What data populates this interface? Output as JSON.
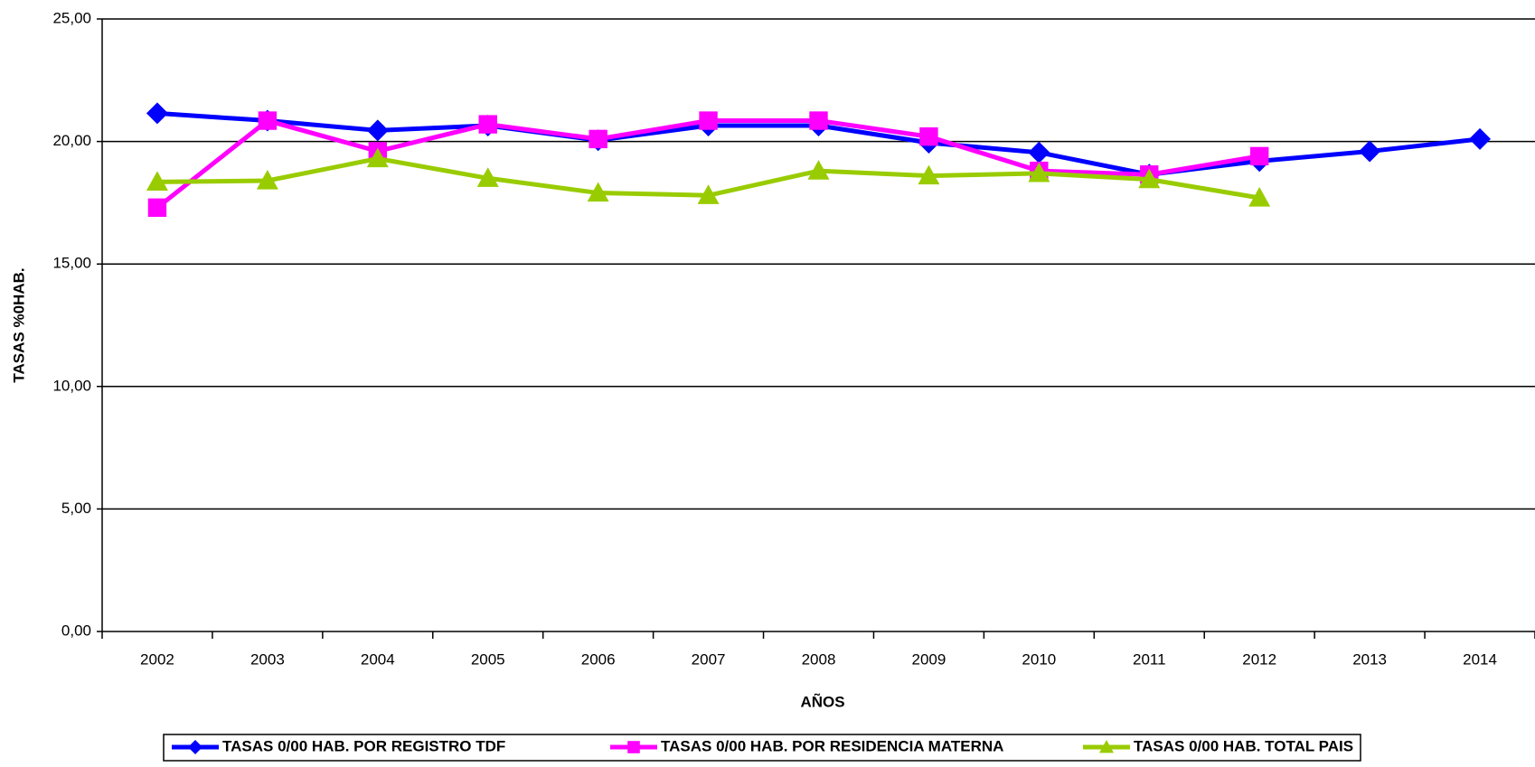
{
  "chart_data": {
    "type": "line",
    "xlabel": "AÑOS",
    "ylabel": "TASAS %0HAB.",
    "categories": [
      "2002",
      "2003",
      "2004",
      "2005",
      "2006",
      "2007",
      "2008",
      "2009",
      "2010",
      "2011",
      "2012",
      "2013",
      "2014"
    ],
    "series": [
      {
        "name": "TASAS 0/00 HAB. POR REGISTRO TDF",
        "color": "#0000ff",
        "marker": "diamond",
        "values": [
          21.15,
          20.85,
          20.45,
          20.65,
          20.05,
          20.65,
          20.65,
          19.95,
          19.55,
          18.65,
          19.2,
          19.6,
          20.1
        ]
      },
      {
        "name": "TASAS 0/00 HAB. POR RESIDENCIA MATERNA",
        "color": "#ff00ff",
        "marker": "square",
        "values": [
          17.3,
          20.85,
          19.6,
          20.7,
          20.1,
          20.85,
          20.85,
          20.2,
          18.8,
          18.65,
          19.4,
          null,
          null
        ]
      },
      {
        "name": "TASAS 0/00 HAB. TOTAL PAIS",
        "color": "#99cc00",
        "marker": "triangle",
        "values": [
          18.35,
          18.4,
          19.3,
          18.5,
          17.9,
          17.8,
          18.8,
          18.6,
          18.7,
          18.45,
          17.7,
          null,
          null
        ]
      }
    ],
    "ylim": [
      0,
      25
    ],
    "yticks": [
      {
        "value": 0,
        "label": "0,00"
      },
      {
        "value": 5,
        "label": "5,00"
      },
      {
        "value": 10,
        "label": "10,00"
      },
      {
        "value": 15,
        "label": "15,00"
      },
      {
        "value": 20,
        "label": "20,00"
      },
      {
        "value": 25,
        "label": "25,00"
      }
    ],
    "grid": true,
    "legend": "bottom"
  }
}
